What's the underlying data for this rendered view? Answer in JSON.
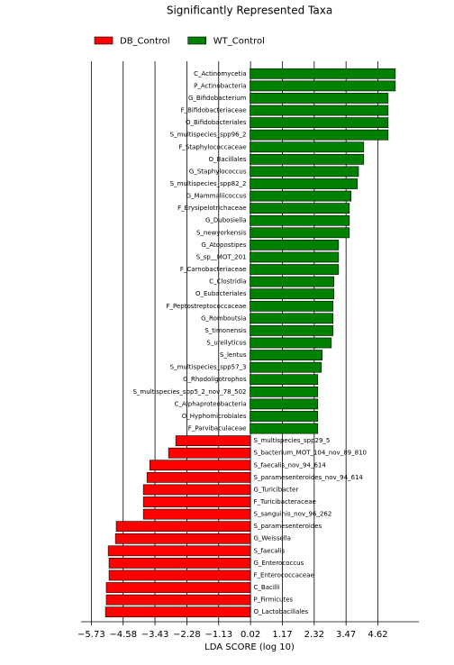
{
  "chart_data": {
    "type": "bar",
    "orientation": "horizontal",
    "title": "Significantly Represented Taxa",
    "xlabel": "LDA SCORE (log 10)",
    "legend": "top-left",
    "grid": true,
    "categories": [
      "C_Actinomycetia",
      "P_Actinobacteria",
      "G_Bifidobacterium",
      "F_Bifidobacteriaceae",
      "O_Bifidobacteriales",
      "S_multispecies_spp96_2",
      "F_Staphylococcaceae",
      "O_Bacillales",
      "G_Staphylococcus",
      "S_multispecies_spp82_2",
      "G_Mammaliicoccus",
      "F_Erysipelotrichaceae",
      "G_Dubosiella",
      "S_newyorkensis",
      "G_Atopostipes",
      "S_sp__MOT_201",
      "F_Carnobacteriaceae",
      "C_Clostridia",
      "O_Eubacteriales",
      "F_Peptostreptococcaceae",
      "G_Romboutsia",
      "S_timonensis",
      "S_ureilyticus",
      "S_lentus",
      "S_multispecies_spp57_3",
      "G_Rhodoligotrophos",
      "S_multispecies_spp5_2_nov_78_502",
      "C_Alphaproteobacteria",
      "O_Hyphomicrobiales",
      "F_Parvibaculaceae",
      "S_multispecies_spp29_5",
      "S_bacterium_MOT_104_nov_89_810",
      "S_faecalis_nov_94_614",
      "S_paramesenteroides_nov_94_614",
      "G_Turicibacter",
      "F_Turicibacteraceae",
      "S_sanguinis_nov_96_262",
      "S_paramesenteroides",
      "G_Weissella",
      "S_faecalis",
      "G_Enterococcus",
      "F_Enterococcaceae",
      "C_Bacilli",
      "P_Firmicutes",
      "O_Lactobacillales"
    ],
    "series": [
      {
        "name": "DB_Control",
        "color": "#ff0000",
        "values": [
          null,
          null,
          null,
          null,
          null,
          null,
          null,
          null,
          null,
          null,
          null,
          null,
          null,
          null,
          null,
          null,
          null,
          null,
          null,
          null,
          null,
          null,
          null,
          null,
          null,
          null,
          null,
          null,
          null,
          null,
          -2.68,
          -2.94,
          -3.62,
          -3.72,
          -3.85,
          -3.85,
          -3.85,
          -4.83,
          -4.86,
          -5.12,
          -5.09,
          -5.09,
          -5.19,
          -5.19,
          -5.22
        ]
      },
      {
        "name": "WT_Control",
        "color": "#008000",
        "values": [
          5.25,
          5.25,
          4.99,
          4.99,
          4.99,
          4.99,
          4.11,
          4.11,
          3.92,
          3.88,
          3.65,
          3.59,
          3.59,
          3.59,
          3.2,
          3.2,
          3.2,
          3.03,
          3.03,
          3.0,
          3.0,
          3.0,
          2.94,
          2.61,
          2.58,
          2.45,
          2.45,
          2.45,
          2.45,
          2.45,
          null,
          null,
          null,
          null,
          null,
          null,
          null,
          null,
          null,
          null,
          null,
          null,
          null,
          null,
          null
        ]
      }
    ],
    "xlim": [
      -6.1,
      6.1
    ],
    "xticks": [
      {
        "value": -5.73,
        "label": "−5.73"
      },
      {
        "value": -4.58,
        "label": "−4.58"
      },
      {
        "value": -3.43,
        "label": "−3.43"
      },
      {
        "value": -2.28,
        "label": "−2.28"
      },
      {
        "value": -1.13,
        "label": "−1.13"
      },
      0.02,
      1.17,
      2.32,
      3.47,
      4.62
    ]
  }
}
